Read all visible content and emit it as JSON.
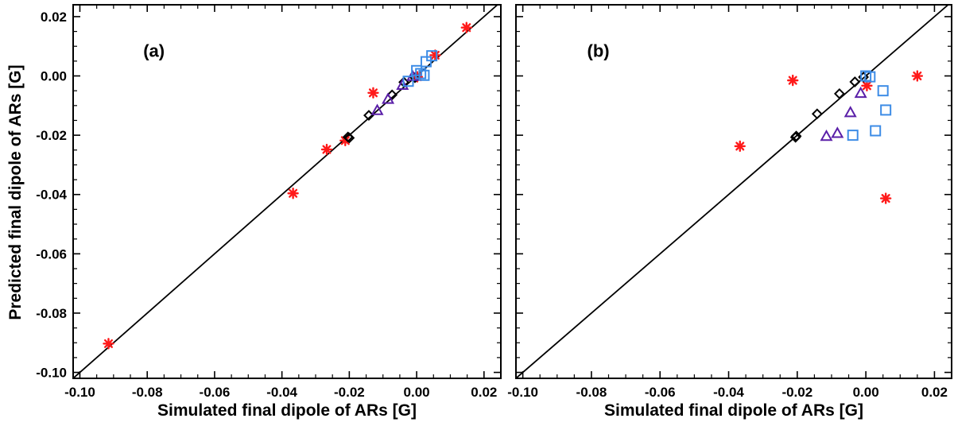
{
  "chart_data": [
    {
      "type": "scatter",
      "panel_label": "(a)",
      "xlabel": "Simulated final dipole of ARs [G]",
      "ylabel": "Predicted final dipole of ARs [G]",
      "xlim": [
        -0.102,
        0.025
      ],
      "ylim": [
        -0.102,
        0.024
      ],
      "xticks": [
        -0.1,
        -0.08,
        -0.06,
        -0.04,
        -0.02,
        0.0,
        0.02
      ],
      "xtick_labels": [
        "-0.10",
        "-0.08",
        "-0.06",
        "-0.04",
        "-0.02",
        "0.00",
        "0.02"
      ],
      "yticks": [
        -0.1,
        -0.08,
        -0.06,
        -0.04,
        -0.02,
        0.0,
        0.02
      ],
      "ytick_labels": [
        "-0.10",
        "-0.08",
        "-0.06",
        "-0.04",
        "-0.02",
        "0.00",
        "0.02"
      ],
      "reference_line": "y = x",
      "series": [
        {
          "name": "asterisks",
          "marker": "asterisk",
          "color": "#ff1a1a",
          "points": [
            [
              -0.0915,
              -0.0903
            ],
            [
              -0.0367,
              -0.0396
            ],
            [
              -0.0267,
              -0.0248
            ],
            [
              -0.0212,
              -0.0218
            ],
            [
              -0.0129,
              -0.0057
            ],
            [
              0.0002,
              -0.0003
            ],
            [
              0.0055,
              0.007
            ],
            [
              0.0148,
              0.0163
            ]
          ]
        },
        {
          "name": "diamonds",
          "marker": "diamond",
          "color": "#000000",
          "points": [
            [
              -0.0204,
              -0.0206
            ],
            [
              -0.02,
              -0.0209
            ],
            [
              -0.0142,
              -0.0133
            ],
            [
              -0.0073,
              -0.0064
            ],
            [
              -0.0038,
              -0.0021
            ],
            [
              -0.0005,
              -0.0006
            ]
          ]
        },
        {
          "name": "triangles",
          "marker": "triangle",
          "color": "#5a1fa8",
          "points": [
            [
              -0.0117,
              -0.0118
            ],
            [
              -0.0085,
              -0.008
            ],
            [
              -0.0042,
              -0.0033
            ],
            [
              -0.0012,
              -0.0003
            ]
          ]
        },
        {
          "name": "squares",
          "marker": "square",
          "color": "#3d8ce6",
          "points": [
            [
              -0.0025,
              -0.0018
            ],
            [
              0.0,
              0.0018
            ],
            [
              0.0012,
              0.0008
            ],
            [
              0.0028,
              0.0048
            ],
            [
              0.0045,
              0.0068
            ],
            [
              0.0022,
              0.0002
            ]
          ]
        }
      ]
    },
    {
      "type": "scatter",
      "panel_label": "(b)",
      "xlabel": "Simulated final dipole of ARs [G]",
      "ylabel": "",
      "xlim": [
        -0.102,
        0.025
      ],
      "ylim": [
        -0.102,
        0.024
      ],
      "xticks": [
        -0.1,
        -0.08,
        -0.06,
        -0.04,
        -0.02,
        0.0,
        0.02
      ],
      "xtick_labels": [
        "-0.10",
        "-0.08",
        "-0.06",
        "-0.04",
        "-0.02",
        "0.00",
        "0.02"
      ],
      "yticks": [],
      "ytick_labels": [],
      "reference_line": "y = x",
      "series": [
        {
          "name": "asterisks",
          "marker": "asterisk",
          "color": "#ff1a1a",
          "points": [
            [
              -0.0367,
              -0.0237
            ],
            [
              -0.0213,
              -0.0015
            ],
            [
              0.0003,
              -0.0033
            ],
            [
              0.0058,
              -0.0413
            ],
            [
              0.015,
              0.0
            ]
          ]
        },
        {
          "name": "diamonds",
          "marker": "diamond",
          "color": "#000000",
          "points": [
            [
              -0.0205,
              -0.0207
            ],
            [
              -0.0203,
              -0.0203
            ],
            [
              -0.0142,
              -0.0128
            ],
            [
              -0.0077,
              -0.006
            ],
            [
              -0.0032,
              -0.002
            ],
            [
              -0.0007,
              -0.0004
            ]
          ]
        },
        {
          "name": "triangles",
          "marker": "triangle",
          "color": "#5a1fa8",
          "points": [
            [
              -0.0115,
              -0.0205
            ],
            [
              -0.0083,
              -0.0195
            ],
            [
              -0.0045,
              -0.0125
            ],
            [
              -0.0015,
              -0.006
            ]
          ]
        },
        {
          "name": "squares",
          "marker": "square",
          "color": "#3d8ce6",
          "points": [
            [
              -0.0038,
              -0.02
            ],
            [
              0.0,
              0.0
            ],
            [
              0.0012,
              -0.0003
            ],
            [
              0.0028,
              -0.0185
            ],
            [
              0.005,
              -0.005
            ],
            [
              0.0058,
              -0.0115
            ]
          ]
        }
      ]
    }
  ]
}
